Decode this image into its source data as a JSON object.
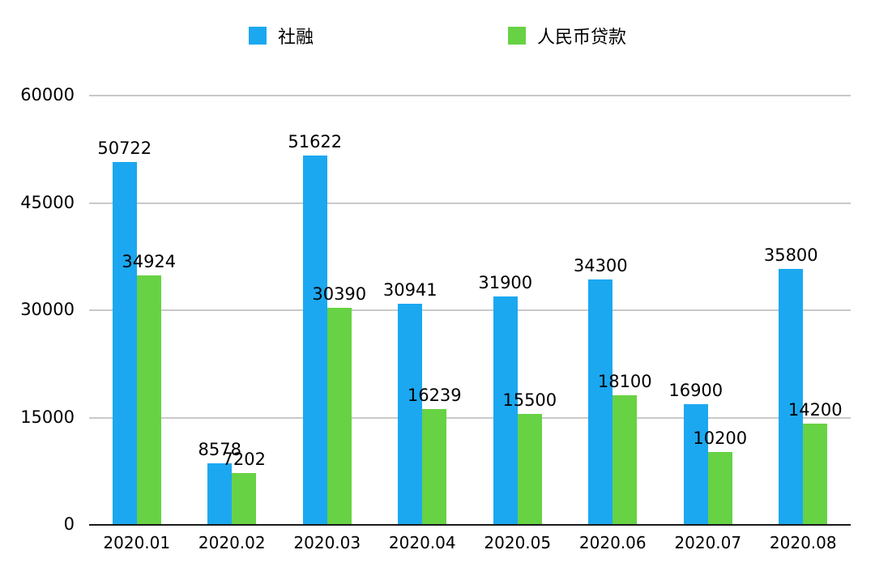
{
  "chart_data": {
    "type": "bar",
    "title": "",
    "xlabel": "",
    "ylabel": "",
    "categories": [
      "2020.01",
      "2020.02",
      "2020.03",
      "2020.04",
      "2020.05",
      "2020.06",
      "2020.07",
      "2020.08"
    ],
    "series": [
      {
        "name": "社融",
        "color": "#1ba8f0",
        "values": [
          50722,
          8578,
          51622,
          30941,
          31900,
          34300,
          16900,
          35800
        ]
      },
      {
        "name": "人民币贷款",
        "color": "#67d244",
        "values": [
          34924,
          7202,
          30390,
          16239,
          15500,
          18100,
          10200,
          14200
        ]
      }
    ],
    "ylim": [
      0,
      60000
    ],
    "yticks": [
      0,
      15000,
      30000,
      45000,
      60000
    ],
    "grid": true,
    "legend_position": "top",
    "gridline_color": "#c9c9c9",
    "axis_color": "#1a1a1a",
    "label_color": "#000000"
  }
}
